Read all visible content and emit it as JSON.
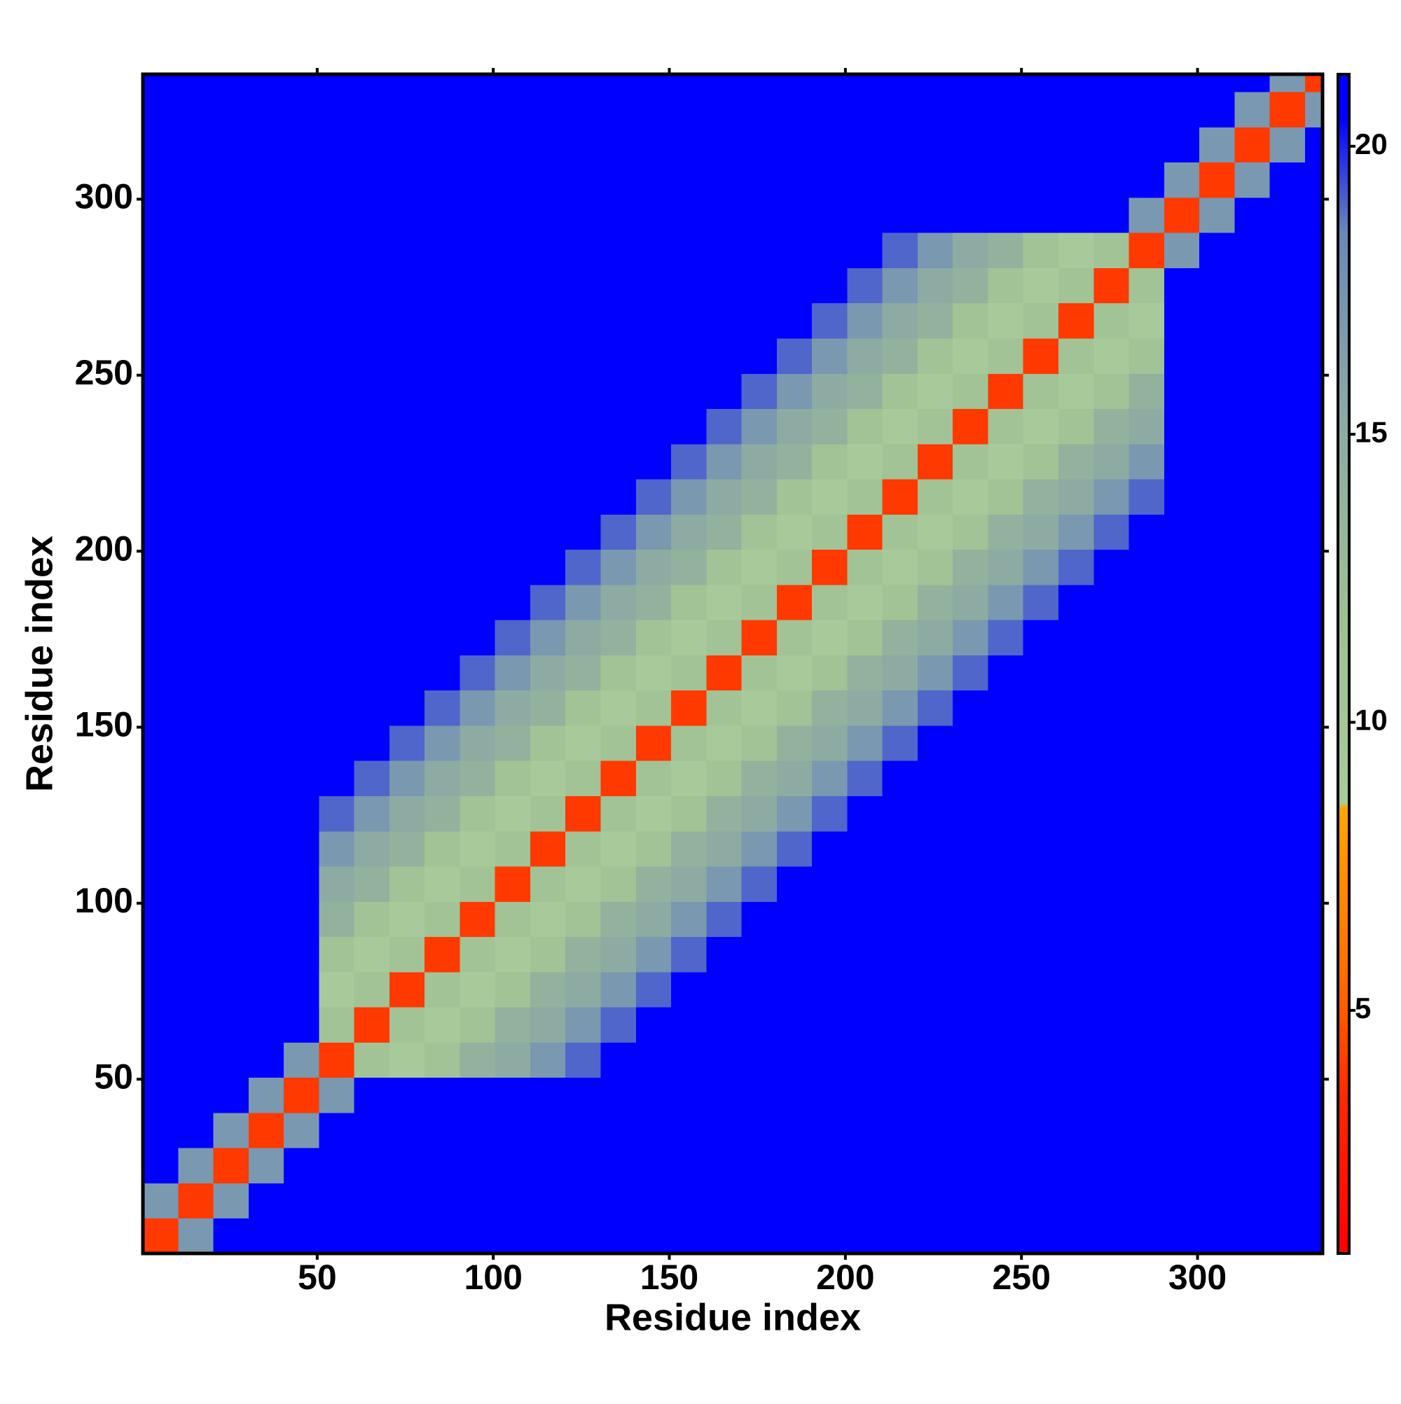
{
  "chart_data": {
    "type": "heatmap",
    "x_label": "Residue index",
    "y_label": "Residue index",
    "xlim": [
      0.5,
      335.5
    ],
    "ylim": [
      0.5,
      335.5
    ],
    "xticks": [
      50,
      100,
      150,
      200,
      250,
      300
    ],
    "yticks": [
      50,
      100,
      150,
      200,
      250,
      300
    ],
    "bins": [
      0.5,
      10.5,
      20.5,
      30.5,
      40.5,
      50.5,
      60.5,
      70.5,
      80.5,
      90.5,
      100.5,
      110.5,
      120.5,
      130.5,
      140.5,
      150.5,
      160.5,
      170.5,
      180.5,
      190.5,
      200.5,
      210.5,
      220.5,
      230.5,
      240.5,
      250.5,
      260.5,
      270.5,
      280.5,
      290.5,
      300.5,
      310.5,
      320.5,
      330.5,
      335.5
    ],
    "values": [
      [
        4,
        17,
        21,
        21,
        21,
        21,
        21,
        21,
        21,
        21,
        21,
        21,
        21,
        21,
        21,
        21,
        21,
        21,
        21,
        21,
        21,
        21,
        21,
        21,
        21,
        21,
        21,
        21,
        21,
        21,
        21,
        21,
        21,
        21
      ],
      [
        17,
        4,
        17,
        21,
        21,
        21,
        21,
        21,
        21,
        21,
        21,
        21,
        21,
        21,
        21,
        21,
        21,
        21,
        21,
        21,
        21,
        21,
        21,
        21,
        21,
        21,
        21,
        21,
        21,
        21,
        21,
        21,
        21,
        21
      ],
      [
        21,
        17,
        4,
        17,
        21,
        21,
        21,
        21,
        21,
        21,
        21,
        21,
        21,
        21,
        21,
        21,
        21,
        21,
        21,
        21,
        21,
        21,
        21,
        21,
        21,
        21,
        21,
        21,
        21,
        21,
        21,
        21,
        21,
        21
      ],
      [
        21,
        21,
        17,
        4,
        17,
        21,
        21,
        21,
        21,
        21,
        21,
        21,
        21,
        21,
        21,
        21,
        21,
        21,
        21,
        21,
        21,
        21,
        21,
        21,
        21,
        21,
        21,
        21,
        21,
        21,
        21,
        21,
        21,
        21
      ],
      [
        21,
        21,
        21,
        17,
        4,
        17,
        21,
        21,
        21,
        21,
        21,
        21,
        21,
        21,
        21,
        21,
        21,
        21,
        21,
        21,
        21,
        21,
        21,
        21,
        21,
        21,
        21,
        21,
        21,
        21,
        21,
        21,
        21,
        21
      ],
      [
        21,
        21,
        21,
        21,
        17,
        4,
        11,
        9,
        11,
        14,
        15,
        17,
        19,
        21,
        21,
        21,
        21,
        21,
        21,
        21,
        21,
        21,
        21,
        21,
        21,
        21,
        21,
        21,
        21,
        21,
        21,
        21,
        21,
        21
      ],
      [
        21,
        21,
        21,
        21,
        21,
        11,
        4,
        11,
        9,
        11,
        14,
        15,
        17,
        19,
        21,
        21,
        21,
        21,
        21,
        21,
        21,
        21,
        21,
        21,
        21,
        21,
        21,
        21,
        21,
        21,
        21,
        21,
        21,
        21
      ],
      [
        21,
        21,
        21,
        21,
        21,
        9,
        11,
        4,
        11,
        9,
        11,
        14,
        15,
        17,
        19,
        21,
        21,
        21,
        21,
        21,
        21,
        21,
        21,
        21,
        21,
        21,
        21,
        21,
        21,
        21,
        21,
        21,
        21,
        21
      ],
      [
        21,
        21,
        21,
        21,
        21,
        11,
        9,
        11,
        4,
        11,
        9,
        11,
        14,
        15,
        17,
        19,
        21,
        21,
        21,
        21,
        21,
        21,
        21,
        21,
        21,
        21,
        21,
        21,
        21,
        21,
        21,
        21,
        21,
        21
      ],
      [
        21,
        21,
        21,
        21,
        21,
        14,
        11,
        9,
        11,
        4,
        11,
        9,
        11,
        14,
        15,
        17,
        19,
        21,
        21,
        21,
        21,
        21,
        21,
        21,
        21,
        21,
        21,
        21,
        21,
        21,
        21,
        21,
        21,
        21
      ],
      [
        21,
        21,
        21,
        21,
        21,
        15,
        14,
        11,
        9,
        11,
        4,
        11,
        9,
        11,
        14,
        15,
        17,
        19,
        21,
        21,
        21,
        21,
        21,
        21,
        21,
        21,
        21,
        21,
        21,
        21,
        21,
        21,
        21,
        21
      ],
      [
        21,
        21,
        21,
        21,
        21,
        17,
        15,
        14,
        11,
        9,
        11,
        4,
        11,
        9,
        11,
        14,
        15,
        17,
        19,
        21,
        21,
        21,
        21,
        21,
        21,
        21,
        21,
        21,
        21,
        21,
        21,
        21,
        21,
        21
      ],
      [
        21,
        21,
        21,
        21,
        21,
        19,
        17,
        15,
        14,
        11,
        9,
        11,
        4,
        11,
        9,
        11,
        14,
        15,
        17,
        19,
        21,
        21,
        21,
        21,
        21,
        21,
        21,
        21,
        21,
        21,
        21,
        21,
        21,
        21
      ],
      [
        21,
        21,
        21,
        21,
        21,
        21,
        19,
        17,
        15,
        14,
        11,
        9,
        11,
        4,
        11,
        9,
        11,
        14,
        15,
        17,
        19,
        21,
        21,
        21,
        21,
        21,
        21,
        21,
        21,
        21,
        21,
        21,
        21,
        21
      ],
      [
        21,
        21,
        21,
        21,
        21,
        21,
        21,
        19,
        17,
        15,
        14,
        11,
        9,
        11,
        4,
        11,
        9,
        11,
        14,
        15,
        17,
        19,
        21,
        21,
        21,
        21,
        21,
        21,
        21,
        21,
        21,
        21,
        21,
        21
      ],
      [
        21,
        21,
        21,
        21,
        21,
        21,
        21,
        21,
        19,
        17,
        15,
        14,
        11,
        9,
        11,
        4,
        11,
        9,
        11,
        14,
        15,
        17,
        19,
        21,
        21,
        21,
        21,
        21,
        21,
        21,
        21,
        21,
        21,
        21
      ],
      [
        21,
        21,
        21,
        21,
        21,
        21,
        21,
        21,
        21,
        19,
        17,
        15,
        14,
        11,
        9,
        11,
        4,
        11,
        9,
        11,
        14,
        15,
        17,
        19,
        21,
        21,
        21,
        21,
        21,
        21,
        21,
        21,
        21,
        21
      ],
      [
        21,
        21,
        21,
        21,
        21,
        21,
        21,
        21,
        21,
        21,
        19,
        17,
        15,
        14,
        11,
        9,
        11,
        4,
        11,
        9,
        11,
        14,
        15,
        17,
        19,
        21,
        21,
        21,
        21,
        21,
        21,
        21,
        21,
        21
      ],
      [
        21,
        21,
        21,
        21,
        21,
        21,
        21,
        21,
        21,
        21,
        21,
        19,
        17,
        15,
        14,
        11,
        9,
        11,
        4,
        11,
        9,
        11,
        14,
        15,
        17,
        19,
        21,
        21,
        21,
        21,
        21,
        21,
        21,
        21
      ],
      [
        21,
        21,
        21,
        21,
        21,
        21,
        21,
        21,
        21,
        21,
        21,
        21,
        19,
        17,
        15,
        14,
        11,
        9,
        11,
        4,
        11,
        9,
        11,
        14,
        15,
        17,
        19,
        21,
        21,
        21,
        21,
        21,
        21,
        21
      ],
      [
        21,
        21,
        21,
        21,
        21,
        21,
        21,
        21,
        21,
        21,
        21,
        21,
        21,
        19,
        17,
        15,
        14,
        11,
        9,
        11,
        4,
        11,
        9,
        11,
        14,
        15,
        17,
        19,
        21,
        21,
        21,
        21,
        21,
        21
      ],
      [
        21,
        21,
        21,
        21,
        21,
        21,
        21,
        21,
        21,
        21,
        21,
        21,
        21,
        21,
        19,
        17,
        15,
        14,
        11,
        9,
        11,
        4,
        11,
        9,
        11,
        14,
        15,
        17,
        19,
        21,
        21,
        21,
        21,
        21
      ],
      [
        21,
        21,
        21,
        21,
        21,
        21,
        21,
        21,
        21,
        21,
        21,
        21,
        21,
        21,
        21,
        19,
        17,
        15,
        14,
        11,
        9,
        11,
        4,
        11,
        9,
        11,
        14,
        15,
        17,
        21,
        21,
        21,
        21,
        21
      ],
      [
        21,
        21,
        21,
        21,
        21,
        21,
        21,
        21,
        21,
        21,
        21,
        21,
        21,
        21,
        21,
        21,
        19,
        17,
        15,
        14,
        11,
        9,
        11,
        4,
        11,
        9,
        11,
        14,
        15,
        21,
        21,
        21,
        21,
        21
      ],
      [
        21,
        21,
        21,
        21,
        21,
        21,
        21,
        21,
        21,
        21,
        21,
        21,
        21,
        21,
        21,
        21,
        21,
        19,
        17,
        15,
        14,
        11,
        9,
        11,
        4,
        11,
        9,
        11,
        14,
        21,
        21,
        21,
        21,
        21
      ],
      [
        21,
        21,
        21,
        21,
        21,
        21,
        21,
        21,
        21,
        21,
        21,
        21,
        21,
        21,
        21,
        21,
        21,
        21,
        19,
        17,
        15,
        14,
        11,
        9,
        11,
        4,
        11,
        9,
        11,
        21,
        21,
        21,
        21,
        21
      ],
      [
        21,
        21,
        21,
        21,
        21,
        21,
        21,
        21,
        21,
        21,
        21,
        21,
        21,
        21,
        21,
        21,
        21,
        21,
        21,
        19,
        17,
        15,
        14,
        11,
        9,
        11,
        4,
        11,
        9,
        21,
        21,
        21,
        21,
        21
      ],
      [
        21,
        21,
        21,
        21,
        21,
        21,
        21,
        21,
        21,
        21,
        21,
        21,
        21,
        21,
        21,
        21,
        21,
        21,
        21,
        21,
        19,
        17,
        15,
        14,
        11,
        9,
        11,
        4,
        11,
        21,
        21,
        21,
        21,
        21
      ],
      [
        21,
        21,
        21,
        21,
        21,
        21,
        21,
        21,
        21,
        21,
        21,
        21,
        21,
        21,
        21,
        21,
        21,
        21,
        21,
        21,
        21,
        19,
        17,
        15,
        14,
        11,
        9,
        11,
        4,
        17,
        21,
        21,
        21,
        21
      ],
      [
        21,
        21,
        21,
        21,
        21,
        21,
        21,
        21,
        21,
        21,
        21,
        21,
        21,
        21,
        21,
        21,
        21,
        21,
        21,
        21,
        21,
        21,
        21,
        21,
        21,
        21,
        21,
        21,
        17,
        4,
        17,
        21,
        21,
        21
      ],
      [
        21,
        21,
        21,
        21,
        21,
        21,
        21,
        21,
        21,
        21,
        21,
        21,
        21,
        21,
        21,
        21,
        21,
        21,
        21,
        21,
        21,
        21,
        21,
        21,
        21,
        21,
        21,
        21,
        21,
        17,
        4,
        17,
        21,
        21
      ],
      [
        21,
        21,
        21,
        21,
        21,
        21,
        21,
        21,
        21,
        21,
        21,
        21,
        21,
        21,
        21,
        21,
        21,
        21,
        21,
        21,
        21,
        21,
        21,
        21,
        21,
        21,
        21,
        21,
        21,
        21,
        17,
        4,
        17,
        21
      ],
      [
        21,
        21,
        21,
        21,
        21,
        21,
        21,
        21,
        21,
        21,
        21,
        21,
        21,
        21,
        21,
        21,
        21,
        21,
        21,
        21,
        21,
        21,
        21,
        21,
        21,
        21,
        21,
        21,
        21,
        21,
        21,
        17,
        4,
        17
      ],
      [
        21,
        21,
        21,
        21,
        21,
        21,
        21,
        21,
        21,
        21,
        21,
        21,
        21,
        21,
        21,
        21,
        21,
        21,
        21,
        21,
        21,
        21,
        21,
        21,
        21,
        21,
        21,
        21,
        21,
        21,
        21,
        21,
        17,
        4
      ]
    ],
    "clim": [
      0.78,
      21.25
    ],
    "colorbar_ticks": [
      5,
      10,
      15,
      20
    ],
    "colorscale": [
      {
        "value": 0.78,
        "color": "#ff0000"
      },
      {
        "value": 3.5,
        "color": "#ff2800"
      },
      {
        "value": 5.5,
        "color": "#ff6a00"
      },
      {
        "value": 8.5,
        "color": "#ffa500"
      },
      {
        "value": 8.6,
        "color": "#aacb9c"
      },
      {
        "value": 12,
        "color": "#9dbf92"
      },
      {
        "value": 15.5,
        "color": "#8aa8a6"
      },
      {
        "value": 18.5,
        "color": "#6a88b8"
      },
      {
        "value": 20.5,
        "color": "#0000ff"
      },
      {
        "value": 21.25,
        "color": "#0000ff"
      }
    ]
  }
}
